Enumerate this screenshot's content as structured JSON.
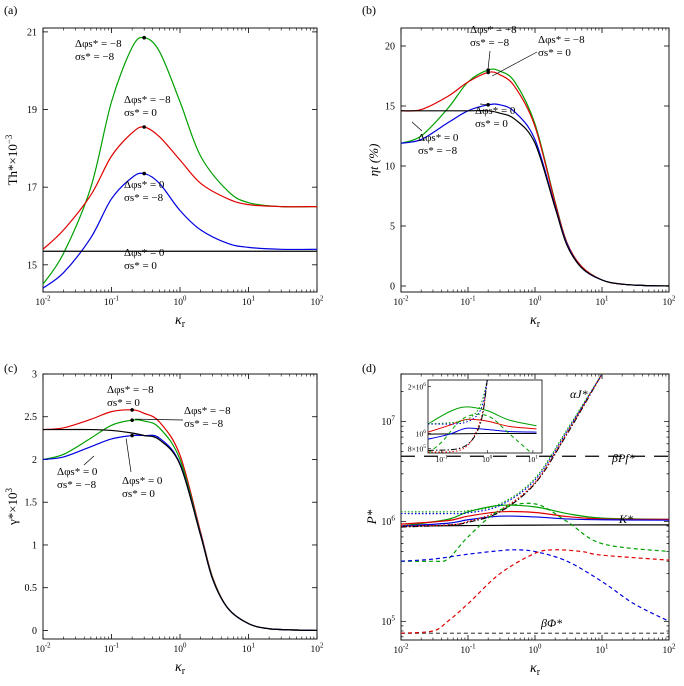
{
  "figure_title": "Four-panel figure",
  "chart_data": [
    {
      "panel": "(a)",
      "type": "line",
      "xlabel": "κr",
      "ylabel": "Th*×10^-3",
      "xscale": "log",
      "xlim": [
        0.01,
        100
      ],
      "ylim": [
        14.3,
        21.1
      ],
      "xticks": [
        "10^-2",
        "10^-1",
        "10^0",
        "10^1",
        "10^2"
      ],
      "yticks": [
        15,
        17,
        19,
        21
      ],
      "x": [
        0.01,
        0.02,
        0.05,
        0.1,
        0.2,
        0.3,
        0.5,
        1,
        2,
        5,
        10,
        30,
        100
      ],
      "series": [
        {
          "name": "Δφs*=-8, σs*=-8",
          "color": "#00a000",
          "values": [
            14.5,
            15.3,
            17.0,
            19.2,
            20.6,
            20.85,
            20.5,
            19.2,
            17.8,
            16.9,
            16.6,
            16.5,
            16.5
          ]
        },
        {
          "name": "Δφs*=-8, σs*=0",
          "color": "#e00000",
          "values": [
            15.4,
            15.9,
            16.8,
            17.8,
            18.4,
            18.55,
            18.3,
            17.7,
            17.1,
            16.7,
            16.55,
            16.5,
            16.5
          ]
        },
        {
          "name": "Δφs*=0, σs*=-8",
          "color": "#0000e0",
          "values": [
            14.4,
            14.8,
            15.7,
            16.7,
            17.25,
            17.35,
            17.1,
            16.4,
            15.9,
            15.55,
            15.45,
            15.4,
            15.4
          ]
        },
        {
          "name": "Δφs*=0, σs*=0",
          "color": "#000000",
          "values": [
            15.35,
            15.35,
            15.35,
            15.35,
            15.35,
            15.35,
            15.35,
            15.35,
            15.35,
            15.35,
            15.35,
            15.35,
            15.35
          ]
        }
      ],
      "annotations": [
        {
          "line1": "Δφs* = −8",
          "line2": "σs* = −8"
        },
        {
          "line1": "Δφs* = −8",
          "line2": "σs* = 0"
        },
        {
          "line1": "Δφs* = 0",
          "line2": "σs* = −8"
        },
        {
          "line1": "Δφs* = 0",
          "line2": "σs* = 0"
        }
      ]
    },
    {
      "panel": "(b)",
      "type": "line",
      "xlabel": "κr",
      "ylabel": "ηt (%)",
      "xscale": "log",
      "xlim": [
        0.01,
        100
      ],
      "ylim": [
        -0.5,
        21.5
      ],
      "xticks": [
        "10^-2",
        "10^-1",
        "10^0",
        "10^1",
        "10^2"
      ],
      "yticks": [
        0,
        5,
        10,
        15,
        20
      ],
      "x": [
        0.01,
        0.02,
        0.05,
        0.1,
        0.2,
        0.3,
        0.5,
        1,
        2,
        3,
        5,
        10,
        20,
        50,
        100
      ],
      "series": [
        {
          "name": "Δφs*=-8, σs*=-8",
          "color": "#00a000",
          "values": [
            11.9,
            12.5,
            14.8,
            17.0,
            18.0,
            17.9,
            17.0,
            13.5,
            7.0,
            3.6,
            1.6,
            0.5,
            0.15,
            0.03,
            0.0
          ]
        },
        {
          "name": "Δφs*=-8, σs*=0",
          "color": "#e00000",
          "values": [
            14.6,
            14.7,
            15.8,
            17.0,
            17.8,
            17.6,
            16.6,
            13.3,
            6.9,
            3.6,
            1.6,
            0.5,
            0.15,
            0.03,
            0.0
          ]
        },
        {
          "name": "Δφs*=0, σs*=-8",
          "color": "#0000e0",
          "values": [
            11.9,
            12.2,
            13.6,
            14.6,
            15.1,
            15.1,
            14.5,
            12.2,
            6.6,
            3.5,
            1.5,
            0.5,
            0.15,
            0.03,
            0.0
          ]
        },
        {
          "name": "Δφs*=0, σs*=0",
          "color": "#000000",
          "values": [
            14.6,
            14.6,
            14.6,
            14.6,
            14.6,
            14.4,
            13.9,
            11.9,
            6.5,
            3.4,
            1.5,
            0.5,
            0.15,
            0.03,
            0.0
          ]
        }
      ],
      "annotations": [
        {
          "line1": "Δφs* = −8",
          "line2": "σs* = −8"
        },
        {
          "line1": "Δφs* = −8",
          "line2": "σs* = 0"
        },
        {
          "line1": "Δφs* = −8",
          "line2": "σs* = 0"
        },
        {
          "line1": "Δφs* = 0",
          "line2": "σs* = −8"
        },
        {
          "line1": "Δφs* = 0",
          "line2": "σs* = 0"
        }
      ]
    },
    {
      "panel": "(c)",
      "type": "line",
      "xlabel": "κr",
      "ylabel": "γ*×10^3",
      "xscale": "log",
      "xlim": [
        0.01,
        100
      ],
      "ylim": [
        -0.1,
        3.0
      ],
      "xticks": [
        "10^-2",
        "10^-1",
        "10^0",
        "10^1",
        "10^2"
      ],
      "yticks": [
        0,
        0.5,
        1,
        1.5,
        2,
        2.5,
        3
      ],
      "x": [
        0.01,
        0.02,
        0.05,
        0.1,
        0.2,
        0.3,
        0.5,
        1,
        2,
        3,
        5,
        10,
        20,
        50,
        100
      ],
      "series": [
        {
          "name": "Δφs*=-8, σs*=0",
          "color": "#e00000",
          "values": [
            2.35,
            2.37,
            2.47,
            2.56,
            2.58,
            2.54,
            2.44,
            2.05,
            1.15,
            0.62,
            0.26,
            0.08,
            0.02,
            0.005,
            0.0
          ]
        },
        {
          "name": "Δφs*=-8, σs*=-8",
          "color": "#00a000",
          "values": [
            2.0,
            2.06,
            2.25,
            2.4,
            2.46,
            2.45,
            2.37,
            2.0,
            1.13,
            0.61,
            0.26,
            0.08,
            0.02,
            0.005,
            0.0
          ]
        },
        {
          "name": "Δφs*=0, σs*=-8",
          "color": "#0000e0",
          "values": [
            2.0,
            2.03,
            2.15,
            2.24,
            2.28,
            2.28,
            2.25,
            1.95,
            1.12,
            0.6,
            0.26,
            0.08,
            0.02,
            0.005,
            0.0
          ]
        },
        {
          "name": "Δφs*=0, σs*=0",
          "color": "#000000",
          "values": [
            2.35,
            2.35,
            2.35,
            2.34,
            2.31,
            2.28,
            2.23,
            1.94,
            1.11,
            0.6,
            0.26,
            0.08,
            0.02,
            0.005,
            0.0
          ]
        }
      ],
      "annotations": [
        {
          "line1": "Δφs* = −8",
          "line2": "σs* = 0"
        },
        {
          "line1": "Δφs* = −8",
          "line2": "σs* = −8"
        },
        {
          "line1": "Δφs* = 0",
          "line2": "σs* = −8"
        },
        {
          "line1": "Δφs* = 0",
          "line2": "σs* = 0"
        }
      ]
    },
    {
      "panel": "(d)",
      "type": "line",
      "xlabel": "κr",
      "ylabel": "P*",
      "xscale": "log",
      "yscale": "log",
      "xlim": [
        0.01,
        100
      ],
      "ylim": [
        65000,
        30000000
      ],
      "xticks": [
        "10^-2",
        "10^-1",
        "10^0",
        "10^1",
        "10^2"
      ],
      "yticks": [
        "10^5",
        "10^6",
        "10^7"
      ],
      "curve_labels": [
        "αJ*",
        "βPf*",
        "K*",
        "βΦ*"
      ],
      "series": [
        {
          "name": "βPf*",
          "color": "#000000",
          "style": "longdash",
          "x": [
            0.01,
            100
          ],
          "values": [
            4500000,
            4500000
          ]
        },
        {
          "name": "βΦ*",
          "color": "#555555",
          "style": "dashed",
          "x": [
            0.01,
            100
          ],
          "values": [
            76000,
            76000
          ]
        },
        {
          "name": "K* black",
          "color": "#000000",
          "style": "solid",
          "x": [
            0.01,
            0.1,
            1,
            10,
            100
          ],
          "values": [
            900000,
            910000,
            920000,
            925000,
            925000
          ]
        },
        {
          "name": "K* green",
          "color": "#00a000",
          "style": "solid",
          "x": [
            0.01,
            0.05,
            0.1,
            0.3,
            1,
            3,
            10,
            100
          ],
          "values": [
            900000,
            1050000,
            1250000,
            1450000,
            1400000,
            1200000,
            1080000,
            1050000
          ]
        },
        {
          "name": "K* red",
          "color": "#e00000",
          "style": "solid",
          "x": [
            0.01,
            0.05,
            0.1,
            0.3,
            1,
            3,
            10,
            100
          ],
          "values": [
            940000,
            1020000,
            1130000,
            1250000,
            1230000,
            1120000,
            1060000,
            1050000
          ]
        },
        {
          "name": "K* blue",
          "color": "#0000e0",
          "style": "solid",
          "x": [
            0.01,
            0.05,
            0.1,
            0.3,
            1,
            3,
            10,
            100
          ],
          "values": [
            900000,
            960000,
            1040000,
            1130000,
            1110000,
            1060000,
            1040000,
            1030000
          ]
        },
        {
          "name": "αJ* (dash-dot)",
          "color": "#000000",
          "style": "dashdot",
          "x": [
            0.01,
            0.05,
            0.1,
            0.3,
            1,
            3,
            10
          ],
          "values": [
            880000,
            920000,
            980000,
            1250000,
            2400000,
            7500000,
            30000000
          ]
        },
        {
          "name": "αJ* blue dotted",
          "color": "#0000e0",
          "style": "dotted",
          "x": [
            0.01,
            0.05,
            0.1,
            0.3,
            1,
            3,
            10
          ],
          "values": [
            1200000,
            1200000,
            1220000,
            1450000,
            2600000,
            8000000,
            30000000
          ]
        },
        {
          "name": "αJ* green dotted",
          "color": "#00a000",
          "style": "dotted",
          "x": [
            0.01,
            0.05,
            0.1,
            0.3,
            1,
            3,
            10
          ],
          "values": [
            1250000,
            1250000,
            1280000,
            1500000,
            2700000,
            8300000,
            30000000
          ]
        },
        {
          "name": "αJ* red dotted",
          "color": "#e00000",
          "style": "dotted",
          "x": [
            0.01,
            0.05,
            0.1,
            0.3,
            1,
            3,
            10
          ],
          "values": [
            900000,
            920000,
            1000000,
            1300000,
            2450000,
            7700000,
            30000000
          ]
        },
        {
          "name": "dashed green",
          "color": "#00a000",
          "style": "dashed",
          "x": [
            0.01,
            0.03,
            0.05,
            0.1,
            0.3,
            1,
            3,
            10,
            100
          ],
          "values": [
            400000,
            400000,
            420000,
            700000,
            1300000,
            1500000,
            1000000,
            600000,
            500000
          ]
        },
        {
          "name": "dashed blue",
          "color": "#0000e0",
          "style": "dashed",
          "x": [
            0.01,
            0.03,
            0.1,
            0.3,
            0.5,
            1,
            3,
            10,
            30,
            100
          ],
          "values": [
            400000,
            420000,
            470000,
            510000,
            520000,
            500000,
            400000,
            250000,
            150000,
            100000
          ]
        },
        {
          "name": "dashed red",
          "color": "#e00000",
          "style": "dashed",
          "x": [
            0.01,
            0.03,
            0.05,
            0.1,
            0.3,
            1,
            2,
            5,
            10,
            100
          ],
          "values": [
            76000,
            80000,
            100000,
            150000,
            300000,
            480000,
            520000,
            500000,
            460000,
            410000
          ]
        }
      ],
      "inset": {
        "xticks": [
          "10^-1",
          "10^0",
          "10^1"
        ],
        "yticks": [
          "8×10^5",
          "10^6",
          "2×10^6"
        ]
      }
    }
  ]
}
